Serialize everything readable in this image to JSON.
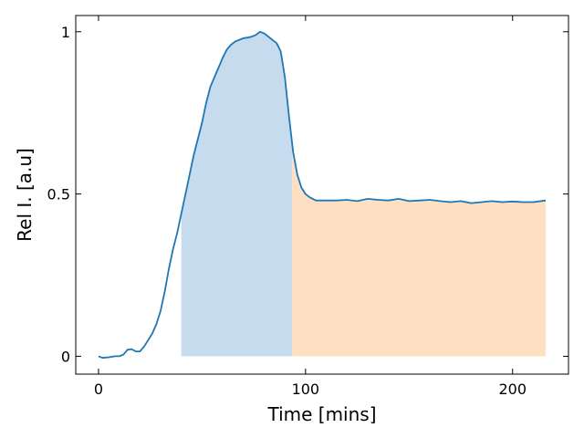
{
  "chart_data": {
    "type": "line",
    "title": "",
    "xlabel": "Time [mins]",
    "ylabel": "Rel I. [a.u]",
    "xlim": [
      -11,
      227
    ],
    "ylim": [
      -0.055,
      1.05
    ],
    "xticks": [
      0,
      100,
      200
    ],
    "xtick_labels": [
      "0",
      "100",
      "200"
    ],
    "yticks": [
      0,
      0.5,
      1
    ],
    "ytick_labels": [
      "0",
      "0.5",
      "1"
    ],
    "grid": false,
    "line_color": "#1f77b4",
    "shaded_regions": [
      {
        "x_start": 40,
        "x_end": 93.5,
        "color": "#c6dbed"
      },
      {
        "x_start": 93.5,
        "x_end": 216,
        "color": "#fddfc2"
      }
    ],
    "series": [
      {
        "x": [
          0,
          2,
          5,
          8,
          10,
          12,
          14,
          16,
          18,
          20,
          22,
          24,
          26,
          28,
          30,
          32,
          34,
          36,
          38,
          40,
          42,
          44,
          46,
          48,
          50,
          52,
          54,
          56,
          58,
          60,
          62,
          64,
          66,
          68,
          70,
          72,
          74,
          76,
          78,
          80,
          82,
          84,
          86,
          88,
          90,
          92,
          94,
          96,
          98,
          100,
          102,
          105,
          110,
          115,
          120,
          125,
          130,
          135,
          140,
          145,
          150,
          155,
          160,
          165,
          170,
          175,
          180,
          185,
          190,
          195,
          200,
          205,
          210,
          216
        ],
        "y": [
          0.0,
          -0.005,
          -0.003,
          0.0,
          0.0,
          0.005,
          0.02,
          0.022,
          0.015,
          0.015,
          0.03,
          0.05,
          0.07,
          0.1,
          0.14,
          0.2,
          0.27,
          0.33,
          0.38,
          0.44,
          0.5,
          0.56,
          0.62,
          0.67,
          0.72,
          0.78,
          0.83,
          0.86,
          0.89,
          0.92,
          0.945,
          0.96,
          0.97,
          0.975,
          0.98,
          0.982,
          0.985,
          0.99,
          1.0,
          0.995,
          0.985,
          0.975,
          0.965,
          0.94,
          0.86,
          0.74,
          0.63,
          0.56,
          0.52,
          0.5,
          0.49,
          0.48,
          0.48,
          0.48,
          0.482,
          0.478,
          0.485,
          0.482,
          0.48,
          0.485,
          0.478,
          0.48,
          0.482,
          0.478,
          0.475,
          0.478,
          0.472,
          0.475,
          0.478,
          0.475,
          0.477,
          0.475,
          0.475,
          0.48
        ]
      }
    ]
  }
}
